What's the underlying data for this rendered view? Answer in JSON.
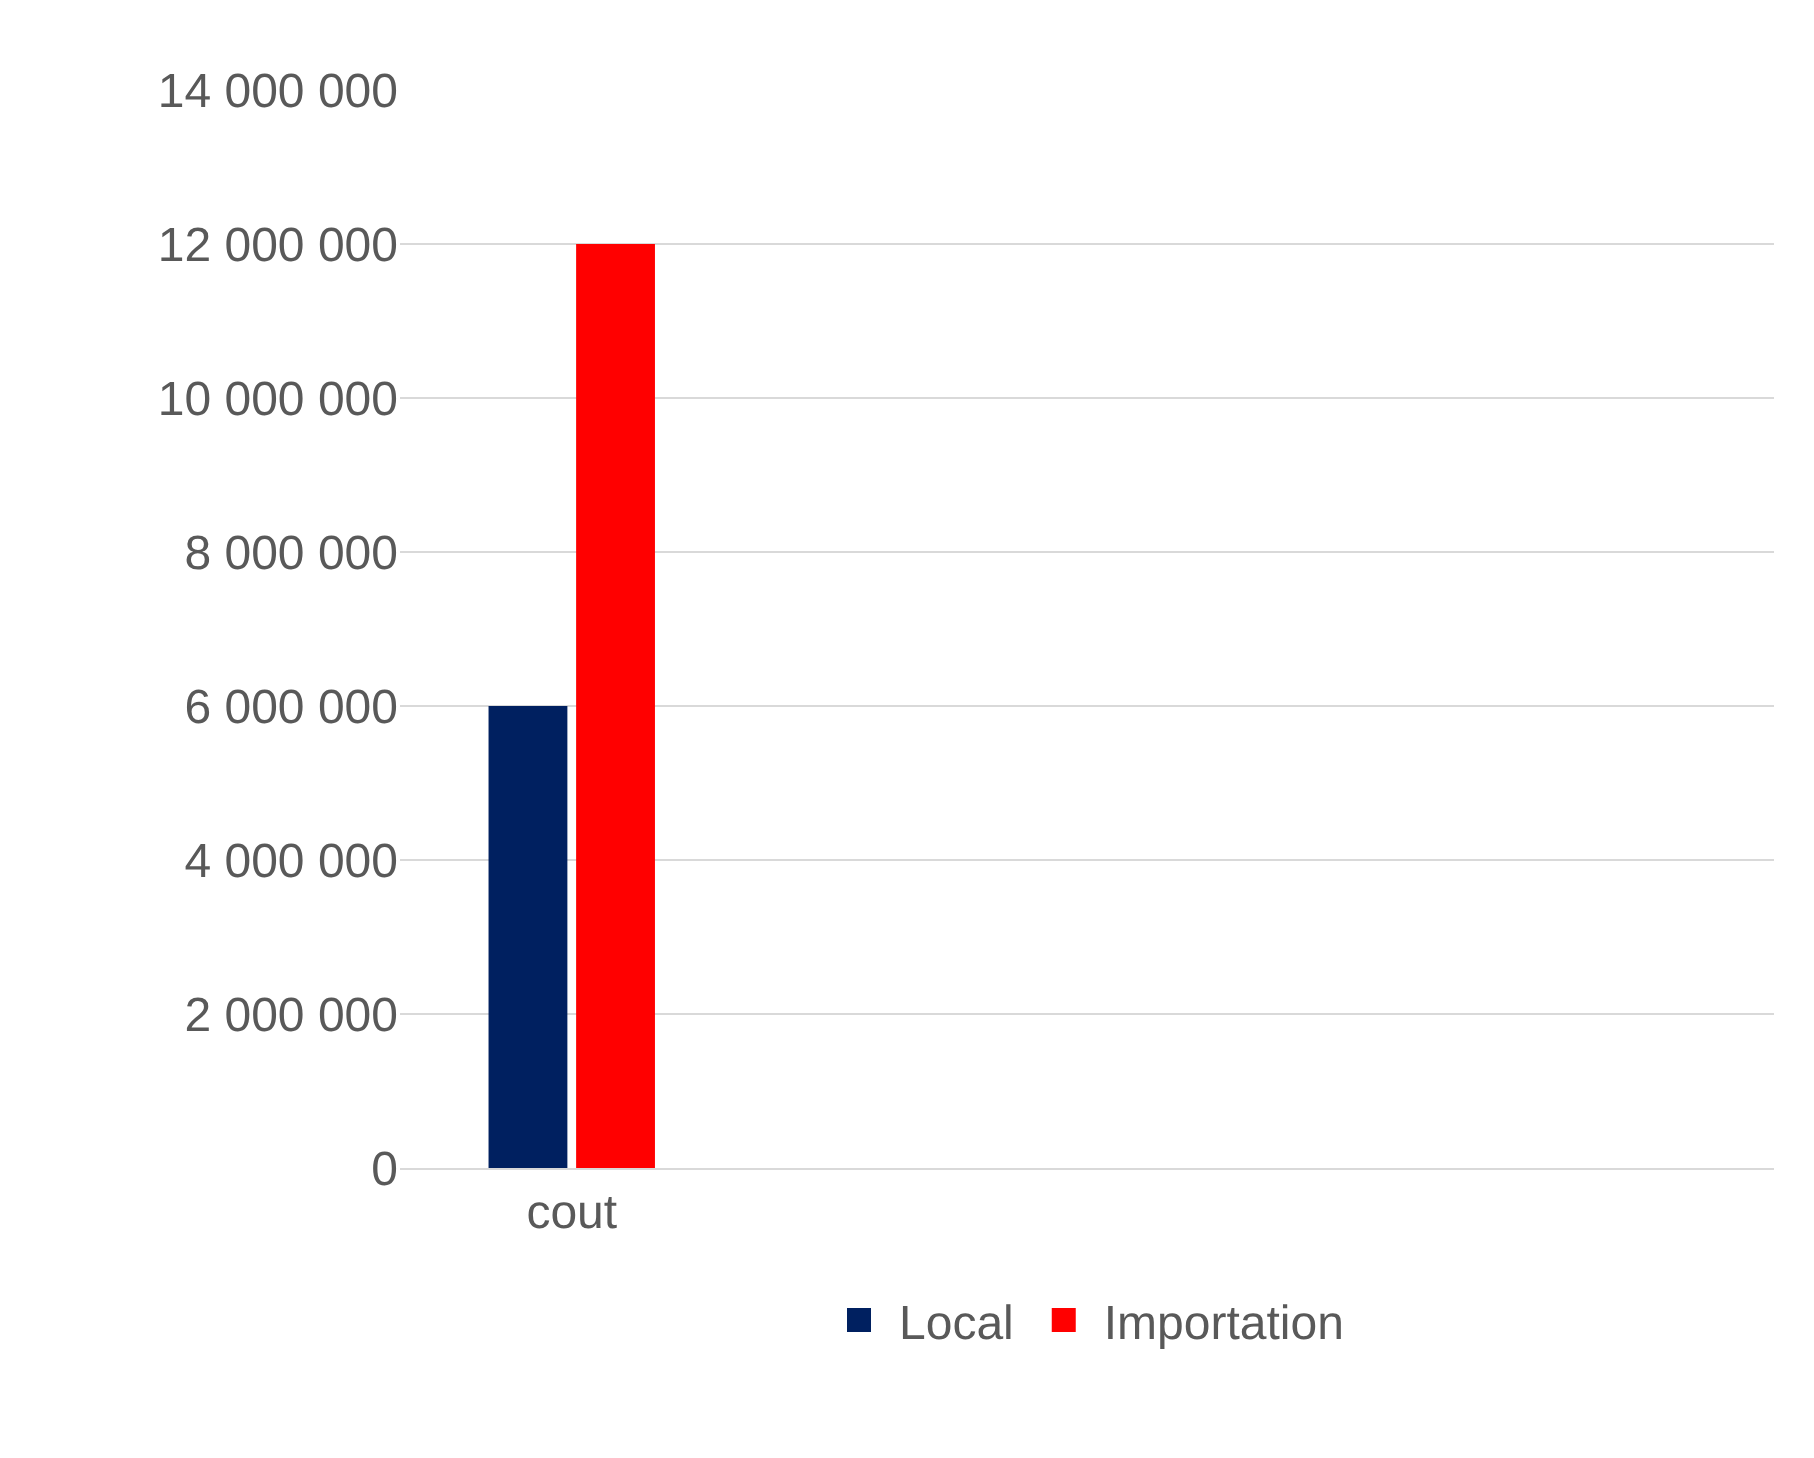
{
  "chart_data": {
    "type": "bar",
    "categories": [
      "cout",
      null,
      null,
      null
    ],
    "series": [
      {
        "name": "Local",
        "color": "#002060",
        "values": [
          6000000,
          null,
          null,
          null
        ]
      },
      {
        "name": "Importation",
        "color": "#ff0000",
        "values": [
          12000000,
          null,
          null,
          null
        ]
      }
    ],
    "ylim": [
      0,
      14000000
    ],
    "yticks": [
      0,
      {
        "value": 2000000,
        "label": "2 000 000"
      },
      {
        "value": 4000000,
        "label": "4 000 000"
      },
      {
        "value": 6000000,
        "label": "6 000 000"
      },
      {
        "value": 8000000,
        "label": "8 000 000"
      },
      {
        "value": 10000000,
        "label": "10 000 000"
      },
      {
        "value": 12000000,
        "label": "12 000 000"
      },
      {
        "value": 14000000,
        "label": "14 000 000"
      }
    ],
    "grid": "y",
    "legend": "bottom"
  }
}
